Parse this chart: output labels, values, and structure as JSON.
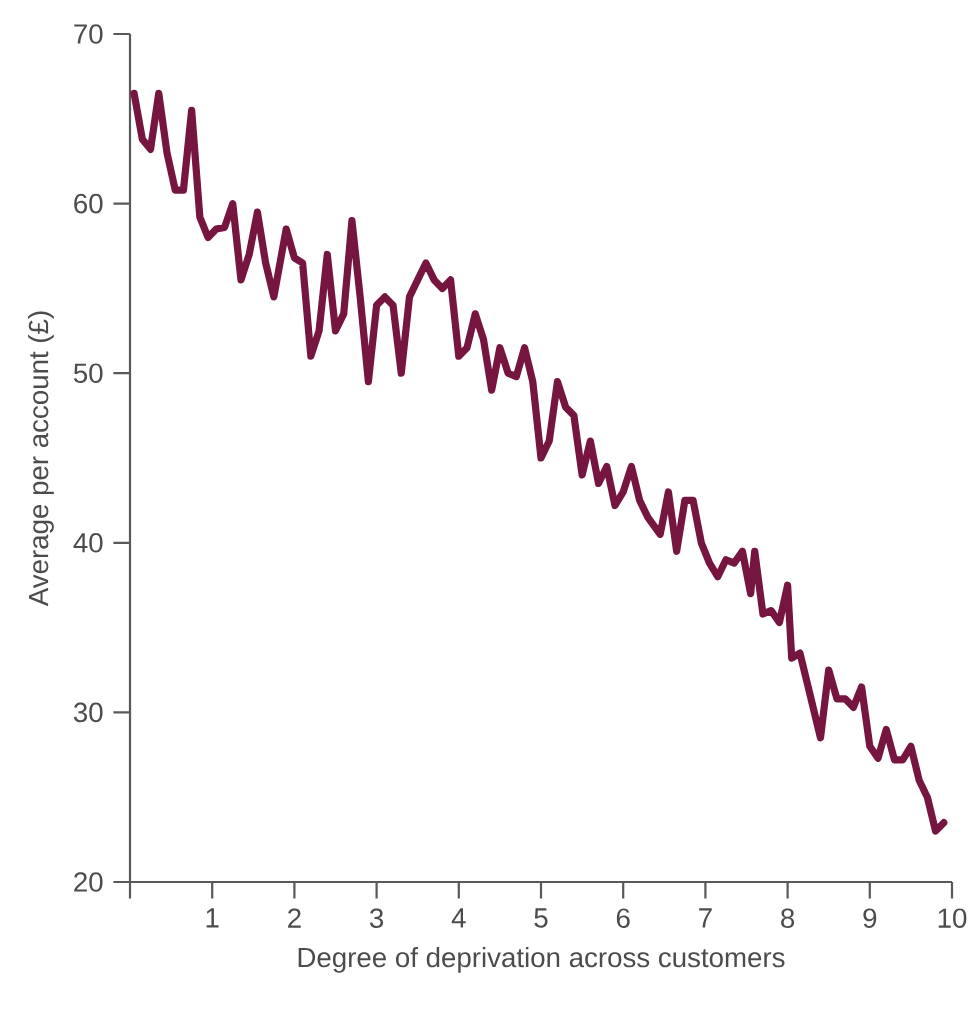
{
  "chart_data": {
    "type": "line",
    "xlabel": "Degree of deprivation across customers",
    "ylabel": "Average per account (£)",
    "x": [
      0.05,
      0.15,
      0.25,
      0.35,
      0.45,
      0.55,
      0.65,
      0.75,
      0.85,
      0.95,
      1.05,
      1.15,
      1.25,
      1.35,
      1.45,
      1.55,
      1.65,
      1.75,
      1.9,
      2.0,
      2.1,
      2.2,
      2.3,
      2.4,
      2.5,
      2.6,
      2.7,
      2.8,
      2.9,
      3.0,
      3.1,
      3.2,
      3.3,
      3.4,
      3.5,
      3.6,
      3.7,
      3.8,
      3.9,
      4.0,
      4.1,
      4.2,
      4.3,
      4.4,
      4.5,
      4.6,
      4.7,
      4.8,
      4.9,
      5.0,
      5.1,
      5.2,
      5.3,
      5.4,
      5.5,
      5.6,
      5.7,
      5.8,
      5.9,
      6.0,
      6.1,
      6.2,
      6.3,
      6.45,
      6.55,
      6.65,
      6.75,
      6.85,
      6.95,
      7.05,
      7.15,
      7.25,
      7.35,
      7.45,
      7.55,
      7.6,
      7.7,
      7.8,
      7.9,
      8.0,
      8.05,
      8.15,
      8.25,
      8.4,
      8.5,
      8.6,
      8.7,
      8.8,
      8.9,
      9.0,
      9.1,
      9.2,
      9.3,
      9.4,
      9.5,
      9.6,
      9.7,
      9.8,
      9.9
    ],
    "series": [
      {
        "color": "#751540",
        "values": [
          66.5,
          63.8,
          63.2,
          66.5,
          63,
          60.8,
          60.8,
          65.5,
          59.2,
          58,
          58.5,
          58.6,
          60,
          55.5,
          57,
          59.5,
          56.5,
          54.5,
          58.5,
          56.8,
          56.5,
          51,
          52.5,
          57,
          52.5,
          53.5,
          59,
          54.5,
          49.5,
          54,
          54.5,
          54,
          50,
          54.5,
          55.5,
          56.5,
          55.5,
          55,
          55.5,
          51,
          51.5,
          53.5,
          52,
          49,
          51.5,
          50,
          49.8,
          51.5,
          49.5,
          45,
          46,
          49.5,
          48,
          47.5,
          44,
          46,
          43.5,
          44.5,
          42.2,
          43,
          44.5,
          42.5,
          41.5,
          40.5,
          43,
          39.5,
          42.5,
          42.5,
          40,
          38.8,
          38,
          39,
          38.8,
          39.5,
          37,
          39.5,
          35.8,
          36,
          35.3,
          37.5,
          33.2,
          33.5,
          31.5,
          28.5,
          32.5,
          30.8,
          30.8,
          30.3,
          31.5,
          28,
          27.3,
          29,
          27.2,
          27.2,
          28,
          26,
          25,
          23,
          23.5
        ]
      }
    ],
    "xlim": [
      0,
      10
    ],
    "ylim": [
      20,
      70
    ],
    "xticks": [
      {
        "value": 0,
        "label": null
      },
      1,
      2,
      3,
      4,
      5,
      6,
      7,
      8,
      9,
      10
    ],
    "yticks": [
      20,
      30,
      40,
      50,
      60,
      70
    ],
    "grid": false,
    "marker": "none",
    "line_style": "solid"
  }
}
